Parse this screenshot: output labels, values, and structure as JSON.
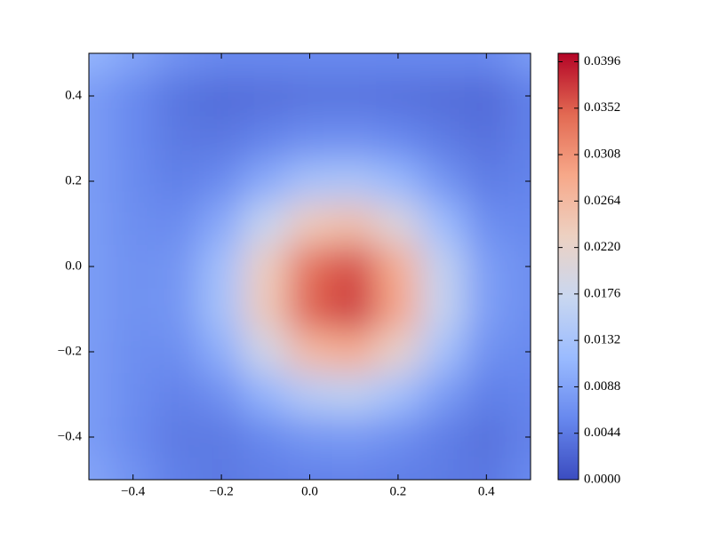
{
  "chart_data": {
    "type": "heatmap",
    "x": [
      -0.5,
      -0.4,
      -0.3,
      -0.2,
      -0.1,
      0.0,
      0.1,
      0.2,
      0.3,
      0.4,
      0.5
    ],
    "y": [
      0.5,
      0.4,
      0.3,
      0.2,
      0.1,
      0.0,
      -0.1,
      -0.2,
      -0.3,
      -0.4,
      -0.5
    ],
    "z": [
      [
        0.011,
        0.009,
        0.007,
        0.006,
        0.006,
        0.006,
        0.006,
        0.006,
        0.006,
        0.006,
        0.008
      ],
      [
        0.008,
        0.006,
        0.004,
        0.0032,
        0.0035,
        0.0038,
        0.0039,
        0.0036,
        0.0033,
        0.003,
        0.005
      ],
      [
        0.008,
        0.006,
        0.0043,
        0.0041,
        0.0053,
        0.0065,
        0.0067,
        0.0058,
        0.0045,
        0.0036,
        0.005
      ],
      [
        0.008,
        0.0062,
        0.005,
        0.0061,
        0.0097,
        0.0132,
        0.0138,
        0.0113,
        0.0074,
        0.0047,
        0.0054
      ],
      [
        0.0081,
        0.0065,
        0.0061,
        0.0095,
        0.0169,
        0.024,
        0.0255,
        0.02,
        0.0121,
        0.0065,
        0.0059
      ],
      [
        0.0081,
        0.0068,
        0.0071,
        0.0125,
        0.0234,
        0.034,
        0.0363,
        0.0282,
        0.0165,
        0.0081,
        0.0064
      ],
      [
        0.0081,
        0.0068,
        0.0073,
        0.0129,
        0.024,
        0.035,
        0.0374,
        0.029,
        0.017,
        0.0083,
        0.0064
      ],
      [
        0.008,
        0.0065,
        0.0064,
        0.0102,
        0.0184,
        0.0264,
        0.028,
        0.022,
        0.0132,
        0.0068,
        0.006
      ],
      [
        0.008,
        0.0063,
        0.0052,
        0.0067,
        0.0109,
        0.0151,
        0.016,
        0.0128,
        0.0082,
        0.005,
        0.0055
      ],
      [
        0.008,
        0.0061,
        0.0044,
        0.0044,
        0.0059,
        0.0074,
        0.0077,
        0.0066,
        0.0049,
        0.0037,
        0.0052
      ],
      [
        0.009,
        0.007,
        0.005,
        0.0043,
        0.0048,
        0.0051,
        0.0052,
        0.0049,
        0.0045,
        0.0041,
        0.006
      ]
    ],
    "colors": [
      "#3b4cc0",
      "#6788ee",
      "#9abbff",
      "#c9d7f0",
      "#edd1c2",
      "#f7a889",
      "#e26952",
      "#b40426"
    ],
    "xlim": [
      -0.5,
      0.5
    ],
    "ylim": [
      -0.5,
      0.5
    ],
    "clim": [
      0,
      0.0404
    ],
    "xticks": [
      {
        "value": -0.4,
        "label": "−0.4"
      },
      {
        "value": -0.2,
        "label": "−0.2"
      },
      {
        "value": 0,
        "label": "0.0"
      },
      {
        "value": 0.2,
        "label": "0.2"
      },
      {
        "value": 0.4,
        "label": "0.4"
      }
    ],
    "yticks": [
      {
        "value": -0.4,
        "label": "−0.4"
      },
      {
        "value": -0.2,
        "label": "−0.2"
      },
      {
        "value": 0,
        "label": "0.0"
      },
      {
        "value": 0.2,
        "label": "0.2"
      },
      {
        "value": 0.4,
        "label": "0.4"
      }
    ],
    "cticks": [
      {
        "value": 0,
        "label": "0.0000"
      },
      {
        "value": 0.0044,
        "label": "0.0044"
      },
      {
        "value": 0.0088,
        "label": "0.0088"
      },
      {
        "value": 0.0132,
        "label": "0.0132"
      },
      {
        "value": 0.0176,
        "label": "0.0176"
      },
      {
        "value": 0.022,
        "label": "0.0220"
      },
      {
        "value": 0.0264,
        "label": "0.0264"
      },
      {
        "value": 0.0308,
        "label": "0.0308"
      },
      {
        "value": 0.0352,
        "label": "0.0352"
      },
      {
        "value": 0.0396,
        "label": "0.0396"
      }
    ]
  }
}
